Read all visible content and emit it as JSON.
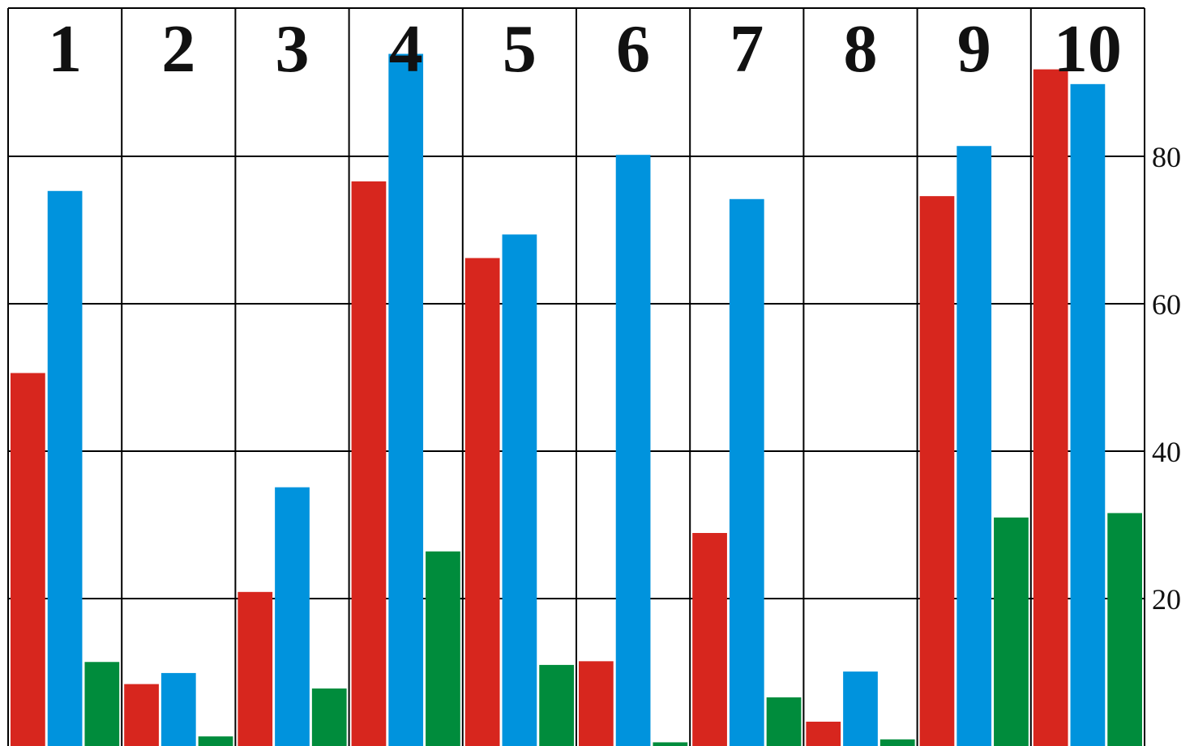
{
  "chart_data": {
    "type": "bar",
    "title": "",
    "xlabel": "",
    "ylabel": "",
    "categories": [
      "1",
      "2",
      "3",
      "4",
      "5",
      "6",
      "7",
      "8",
      "9",
      "10"
    ],
    "series": [
      {
        "color": "#d7261e",
        "values": [
          50.6,
          8.4,
          20.9,
          76.6,
          66.2,
          11.5,
          28.9,
          3.3,
          74.6,
          91.8
        ]
      },
      {
        "color": "#0093dd",
        "values": [
          75.3,
          9.9,
          35.1,
          93.9,
          69.4,
          80.2,
          74.2,
          10.1,
          81.4,
          89.8
        ]
      },
      {
        "color": "#008c3c",
        "values": [
          11.4,
          1.3,
          7.8,
          26.4,
          11.0,
          0.5,
          6.6,
          0.9,
          31.0,
          31.6
        ]
      }
    ],
    "ylim": [
      0,
      100
    ],
    "yticks": [
      20,
      40,
      60,
      80
    ],
    "y_axis_position": "right",
    "grid": true,
    "category_labels_position": "top"
  }
}
